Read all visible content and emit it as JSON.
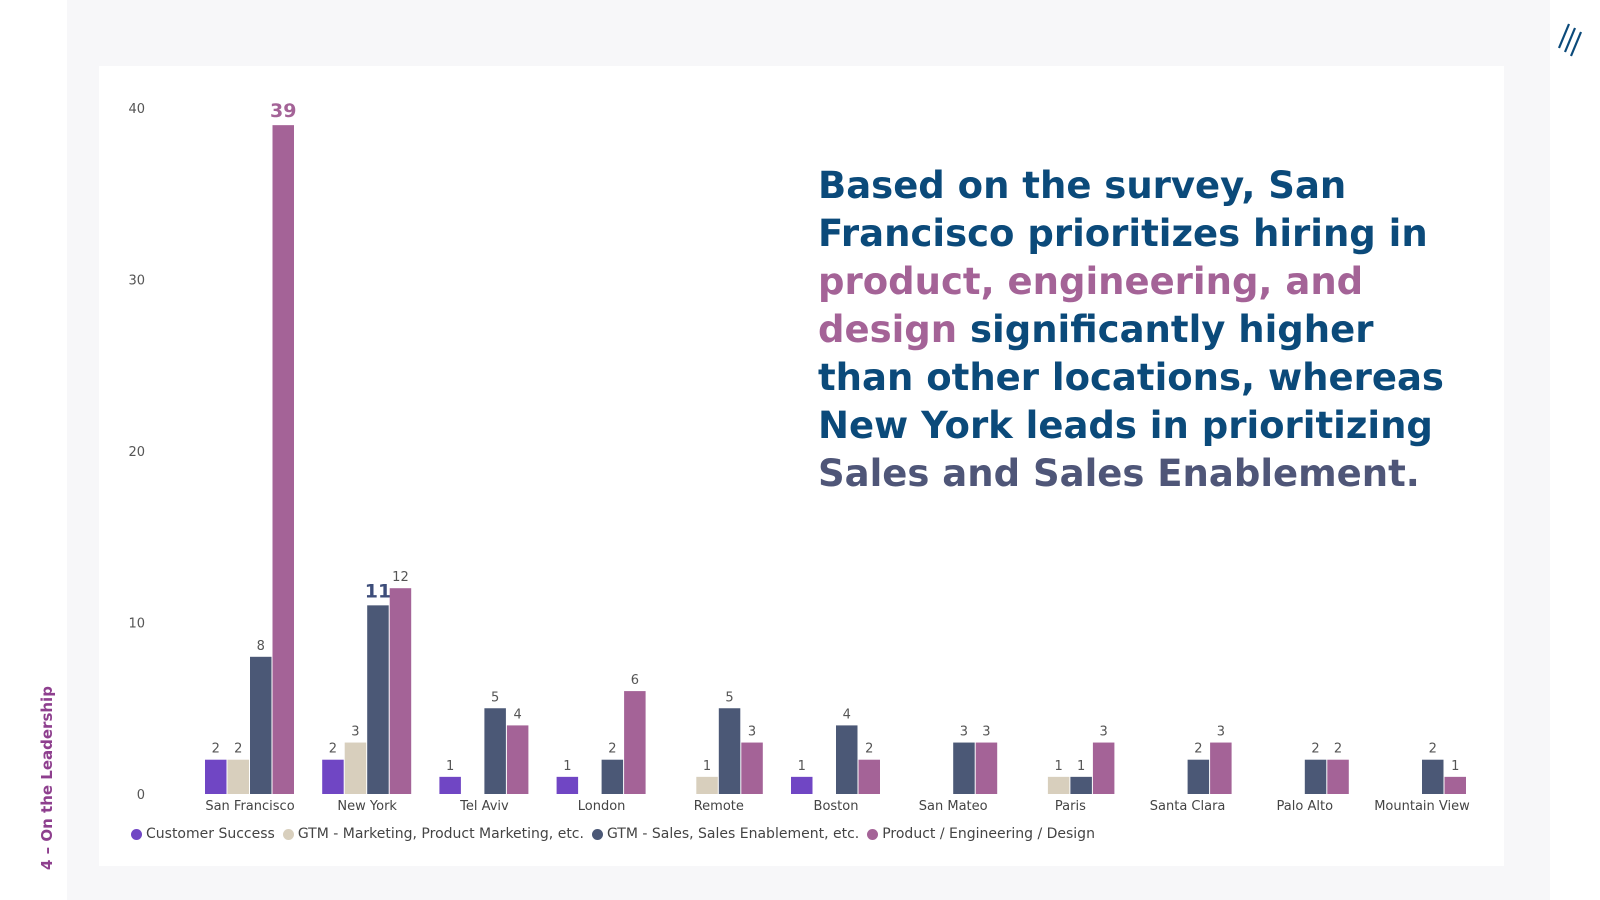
{
  "side_label": "4 – On the Leadership",
  "headline": {
    "part1": "Based on the survey, San Francisco prioritizes hiring in ",
    "part2": "product, engineering, and design",
    "part3": " significantly higher than other locations, whereas New York leads in prioritizing ",
    "part4": "Sales and Sales Enablement."
  },
  "chart_data": {
    "type": "bar",
    "categories": [
      "San Francisco",
      "New York",
      "Tel Aviv",
      "London",
      "Remote",
      "Boston",
      "San Mateo",
      "Paris",
      "Santa Clara",
      "Palo Alto",
      "Mountain View"
    ],
    "series": [
      {
        "name": "Customer Success",
        "color": "#7046c4",
        "values": [
          2,
          2,
          1,
          1,
          null,
          1,
          null,
          null,
          null,
          null,
          null
        ]
      },
      {
        "name": "GTM - Marketing, Product Marketing, etc.",
        "color": "#d8cfbd",
        "values": [
          2,
          3,
          null,
          null,
          1,
          null,
          null,
          1,
          null,
          null,
          null
        ]
      },
      {
        "name": "GTM - Sales, Sales Enablement, etc.",
        "color": "#4b5876",
        "values": [
          8,
          11,
          5,
          2,
          5,
          4,
          3,
          1,
          2,
          2,
          2
        ]
      },
      {
        "name": "Product / Engineering / Design",
        "color": "#a46397",
        "values": [
          39,
          12,
          4,
          6,
          3,
          2,
          3,
          3,
          3,
          2,
          1
        ]
      }
    ],
    "y_ticks": [
      0,
      10,
      20,
      30,
      40
    ],
    "ylim": [
      0,
      40
    ],
    "emphasized": [
      {
        "category": "San Francisco",
        "series": "Product / Engineering / Design",
        "color": "#a46397"
      },
      {
        "category": "New York",
        "series": "GTM - Sales, Sales Enablement, etc.",
        "color": "#3d4d7a"
      }
    ],
    "legend_position": "bottom-left",
    "grid": false
  }
}
